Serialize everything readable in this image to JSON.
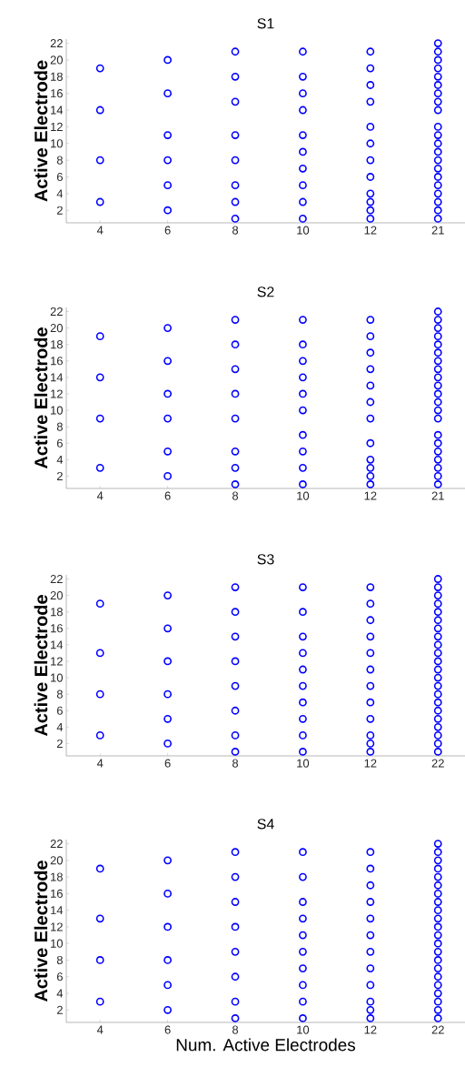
{
  "chart_data": [
    {
      "type": "scatter",
      "title": "S1",
      "ylabel": "Active Electrode",
      "categories": [
        "4",
        "6",
        "8",
        "10",
        "12",
        "21"
      ],
      "ylim": [
        0.5,
        22.5
      ],
      "yticks": [
        2,
        4,
        6,
        8,
        10,
        12,
        14,
        16,
        18,
        20,
        22
      ],
      "marker": "circle",
      "series": [
        {
          "color": "#0000ff",
          "x": [
            "4",
            "4",
            "4",
            "4",
            "6",
            "6",
            "6",
            "6",
            "6",
            "6",
            "8",
            "8",
            "8",
            "8",
            "8",
            "8",
            "8",
            "8",
            "10",
            "10",
            "10",
            "10",
            "10",
            "10",
            "10",
            "10",
            "10",
            "10",
            "12",
            "12",
            "12",
            "12",
            "12",
            "12",
            "12",
            "12",
            "12",
            "12",
            "12",
            "12",
            "21",
            "21",
            "21",
            "21",
            "21",
            "21",
            "21",
            "21",
            "21",
            "21",
            "21",
            "21",
            "21",
            "21",
            "21",
            "21",
            "21",
            "21",
            "21",
            "21",
            "21"
          ],
          "values": [
            3,
            8,
            14,
            19,
            2,
            5,
            8,
            11,
            16,
            20,
            1,
            3,
            5,
            8,
            11,
            15,
            18,
            21,
            1,
            3,
            5,
            7,
            9,
            11,
            14,
            16,
            18,
            21,
            1,
            2,
            3,
            4,
            6,
            8,
            10,
            12,
            15,
            17,
            19,
            21,
            1,
            2,
            3,
            4,
            5,
            6,
            7,
            8,
            9,
            10,
            11,
            12,
            14,
            15,
            16,
            17,
            18,
            19,
            20,
            21,
            22
          ]
        }
      ]
    },
    {
      "type": "scatter",
      "title": "S2",
      "ylabel": "Active Electrode",
      "categories": [
        "4",
        "6",
        "8",
        "10",
        "12",
        "21"
      ],
      "ylim": [
        0.5,
        22.5
      ],
      "yticks": [
        2,
        4,
        6,
        8,
        10,
        12,
        14,
        16,
        18,
        20,
        22
      ],
      "marker": "circle",
      "series": [
        {
          "color": "#0000ff",
          "x": [
            "4",
            "4",
            "4",
            "4",
            "6",
            "6",
            "6",
            "6",
            "6",
            "6",
            "8",
            "8",
            "8",
            "8",
            "8",
            "8",
            "8",
            "8",
            "10",
            "10",
            "10",
            "10",
            "10",
            "10",
            "10",
            "10",
            "10",
            "10",
            "12",
            "12",
            "12",
            "12",
            "12",
            "12",
            "12",
            "12",
            "12",
            "12",
            "12",
            "12",
            "21",
            "21",
            "21",
            "21",
            "21",
            "21",
            "21",
            "21",
            "21",
            "21",
            "21",
            "21",
            "21",
            "21",
            "21",
            "21",
            "21",
            "21",
            "21",
            "21",
            "21"
          ],
          "values": [
            3,
            9,
            14,
            19,
            2,
            5,
            9,
            12,
            16,
            20,
            1,
            3,
            5,
            9,
            12,
            15,
            18,
            21,
            1,
            3,
            5,
            7,
            10,
            12,
            14,
            16,
            18,
            21,
            1,
            2,
            3,
            4,
            6,
            9,
            11,
            13,
            15,
            17,
            19,
            21,
            1,
            2,
            3,
            4,
            5,
            6,
            7,
            9,
            10,
            11,
            12,
            13,
            14,
            15,
            16,
            17,
            18,
            19,
            20,
            21,
            22
          ]
        }
      ]
    },
    {
      "type": "scatter",
      "title": "S3",
      "ylabel": "Active Electrode",
      "categories": [
        "4",
        "6",
        "8",
        "10",
        "12",
        "22"
      ],
      "ylim": [
        0.5,
        22.5
      ],
      "yticks": [
        2,
        4,
        6,
        8,
        10,
        12,
        14,
        16,
        18,
        20,
        22
      ],
      "marker": "circle",
      "series": [
        {
          "color": "#0000ff",
          "x": [
            "4",
            "4",
            "4",
            "4",
            "6",
            "6",
            "6",
            "6",
            "6",
            "6",
            "8",
            "8",
            "8",
            "8",
            "8",
            "8",
            "8",
            "8",
            "10",
            "10",
            "10",
            "10",
            "10",
            "10",
            "10",
            "10",
            "10",
            "10",
            "12",
            "12",
            "12",
            "12",
            "12",
            "12",
            "12",
            "12",
            "12",
            "12",
            "12",
            "12",
            "22",
            "22",
            "22",
            "22",
            "22",
            "22",
            "22",
            "22",
            "22",
            "22",
            "22",
            "22",
            "22",
            "22",
            "22",
            "22",
            "22",
            "22",
            "22",
            "22",
            "22",
            "22"
          ],
          "values": [
            3,
            8,
            13,
            19,
            2,
            5,
            8,
            12,
            16,
            20,
            1,
            3,
            6,
            9,
            12,
            15,
            18,
            21,
            1,
            3,
            5,
            7,
            9,
            11,
            13,
            15,
            18,
            21,
            1,
            2,
            3,
            5,
            7,
            9,
            11,
            13,
            15,
            17,
            19,
            21,
            1,
            2,
            3,
            4,
            5,
            6,
            7,
            8,
            9,
            10,
            11,
            12,
            13,
            14,
            15,
            16,
            17,
            18,
            19,
            20,
            21,
            22
          ]
        }
      ]
    },
    {
      "type": "scatter",
      "title": "S4",
      "xlabel": "Num. Active Electrodes",
      "ylabel": "Active Electrode",
      "categories": [
        "4",
        "6",
        "8",
        "10",
        "12",
        "22"
      ],
      "ylim": [
        0.5,
        22.5
      ],
      "yticks": [
        2,
        4,
        6,
        8,
        10,
        12,
        14,
        16,
        18,
        20,
        22
      ],
      "marker": "circle",
      "series": [
        {
          "color": "#0000ff",
          "x": [
            "4",
            "4",
            "4",
            "4",
            "6",
            "6",
            "6",
            "6",
            "6",
            "6",
            "8",
            "8",
            "8",
            "8",
            "8",
            "8",
            "8",
            "8",
            "10",
            "10",
            "10",
            "10",
            "10",
            "10",
            "10",
            "10",
            "10",
            "10",
            "12",
            "12",
            "12",
            "12",
            "12",
            "12",
            "12",
            "12",
            "12",
            "12",
            "12",
            "12",
            "22",
            "22",
            "22",
            "22",
            "22",
            "22",
            "22",
            "22",
            "22",
            "22",
            "22",
            "22",
            "22",
            "22",
            "22",
            "22",
            "22",
            "22",
            "22",
            "22",
            "22",
            "22"
          ],
          "values": [
            3,
            8,
            13,
            19,
            2,
            5,
            8,
            12,
            16,
            20,
            1,
            3,
            6,
            9,
            12,
            15,
            18,
            21,
            1,
            3,
            5,
            7,
            9,
            11,
            13,
            15,
            18,
            21,
            1,
            2,
            3,
            5,
            7,
            9,
            11,
            13,
            15,
            17,
            19,
            21,
            1,
            2,
            3,
            4,
            5,
            6,
            7,
            8,
            9,
            10,
            11,
            12,
            13,
            14,
            15,
            16,
            17,
            18,
            19,
            20,
            21,
            22
          ]
        }
      ]
    }
  ]
}
